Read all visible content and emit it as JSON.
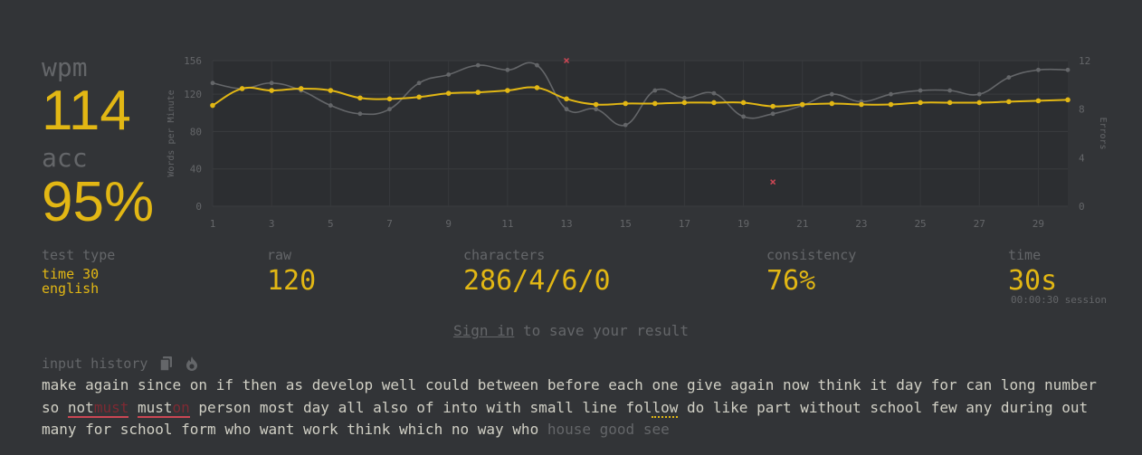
{
  "stats": {
    "wpm_label": "wpm",
    "wpm_value": "114",
    "acc_label": "acc",
    "acc_value": "95%"
  },
  "details": {
    "test_type_label": "test type",
    "test_type_mode": "time 30",
    "test_type_language": "english",
    "raw_label": "raw",
    "raw_value": "120",
    "characters_label": "characters",
    "characters_value": "286/4/6/0",
    "consistency_label": "consistency",
    "consistency_value": "76%",
    "time_label": "time",
    "time_value": "30s",
    "session_value": "00:00:30 session"
  },
  "signin": {
    "link_text": "Sign in",
    "rest_text": " to save your result"
  },
  "history": {
    "label": "input history",
    "lines": [
      [
        {
          "t": "make"
        },
        {
          "t": "again"
        },
        {
          "t": "since"
        },
        {
          "t": "on"
        },
        {
          "t": "if"
        },
        {
          "t": "then"
        },
        {
          "t": "as"
        },
        {
          "t": "develop"
        },
        {
          "t": "well"
        },
        {
          "t": "could"
        },
        {
          "t": "between"
        },
        {
          "t": "before"
        },
        {
          "t": "each"
        },
        {
          "t": "one"
        },
        {
          "t": "give"
        },
        {
          "t": "again"
        },
        {
          "t": "now"
        },
        {
          "t": "think"
        },
        {
          "t": "it"
        },
        {
          "t": "day"
        },
        {
          "t": "for"
        },
        {
          "t": "can"
        },
        {
          "t": "long"
        },
        {
          "t": "number"
        }
      ],
      [
        {
          "t": "so"
        },
        {
          "t": "not",
          "extra": "must",
          "err": true
        },
        {
          "t": "must",
          "extra": "on",
          "err": true
        },
        {
          "t": "person"
        },
        {
          "t": "most"
        },
        {
          "t": "day"
        },
        {
          "t": "all"
        },
        {
          "t": "also"
        },
        {
          "t": "of"
        },
        {
          "t": "into"
        },
        {
          "t": "with"
        },
        {
          "t": "small"
        },
        {
          "t": "line"
        },
        {
          "t": "fol",
          "dotted": "low"
        },
        {
          "t": "do"
        },
        {
          "t": "like"
        },
        {
          "t": "part"
        },
        {
          "t": "without"
        },
        {
          "t": "school"
        },
        {
          "t": "few"
        },
        {
          "t": "any"
        },
        {
          "t": "during"
        },
        {
          "t": "out"
        }
      ],
      [
        {
          "t": "many"
        },
        {
          "t": "for"
        },
        {
          "t": "school"
        },
        {
          "t": "form"
        },
        {
          "t": "who"
        },
        {
          "t": "want"
        },
        {
          "t": "work"
        },
        {
          "t": "think"
        },
        {
          "t": "which"
        },
        {
          "t": "no"
        },
        {
          "t": "way"
        },
        {
          "t": "who"
        },
        {
          "t": "house",
          "untyped": true
        },
        {
          "t": "good",
          "untyped": true
        },
        {
          "t": "see",
          "untyped": true
        }
      ]
    ]
  },
  "chart_data": {
    "type": "line",
    "x": [
      1,
      2,
      3,
      4,
      5,
      6,
      7,
      8,
      9,
      10,
      11,
      12,
      13,
      14,
      15,
      16,
      17,
      18,
      19,
      20,
      21,
      22,
      23,
      24,
      25,
      26,
      27,
      28,
      29,
      30
    ],
    "xticks": [
      "1",
      "3",
      "5",
      "7",
      "9",
      "11",
      "13",
      "15",
      "17",
      "19",
      "21",
      "23",
      "25",
      "27",
      "29"
    ],
    "ylabel": "Words per Minute",
    "y2label": "Errors",
    "ylim": [
      0,
      156
    ],
    "yticks": [
      "0",
      "40",
      "80",
      "120",
      "156"
    ],
    "y2lim": [
      0,
      12
    ],
    "y2ticks": [
      "0",
      "4",
      "8",
      "12"
    ],
    "series": [
      {
        "role": "raw",
        "color": "#646669",
        "values": [
          132,
          126,
          132,
          124,
          108,
          99,
          104,
          132,
          141,
          151,
          146,
          151,
          104,
          104,
          87,
          124,
          116,
          121,
          96,
          99,
          108,
          120,
          112,
          120,
          124,
          124,
          120,
          138,
          146,
          146
        ]
      },
      {
        "role": "wpm",
        "color": "#e2b714",
        "values": [
          108,
          126,
          124,
          126,
          124,
          116,
          115,
          117,
          121,
          122,
          124,
          127,
          115,
          109,
          110,
          110,
          111,
          111,
          111,
          107,
          109,
          110,
          109,
          109,
          111,
          111,
          111,
          112,
          113,
          114
        ]
      }
    ],
    "errors": [
      {
        "x": 13,
        "y": 12
      },
      {
        "x": 20,
        "y": 2
      }
    ],
    "error_color": "#ca4754",
    "grid": true,
    "background": "#2c2e31"
  }
}
